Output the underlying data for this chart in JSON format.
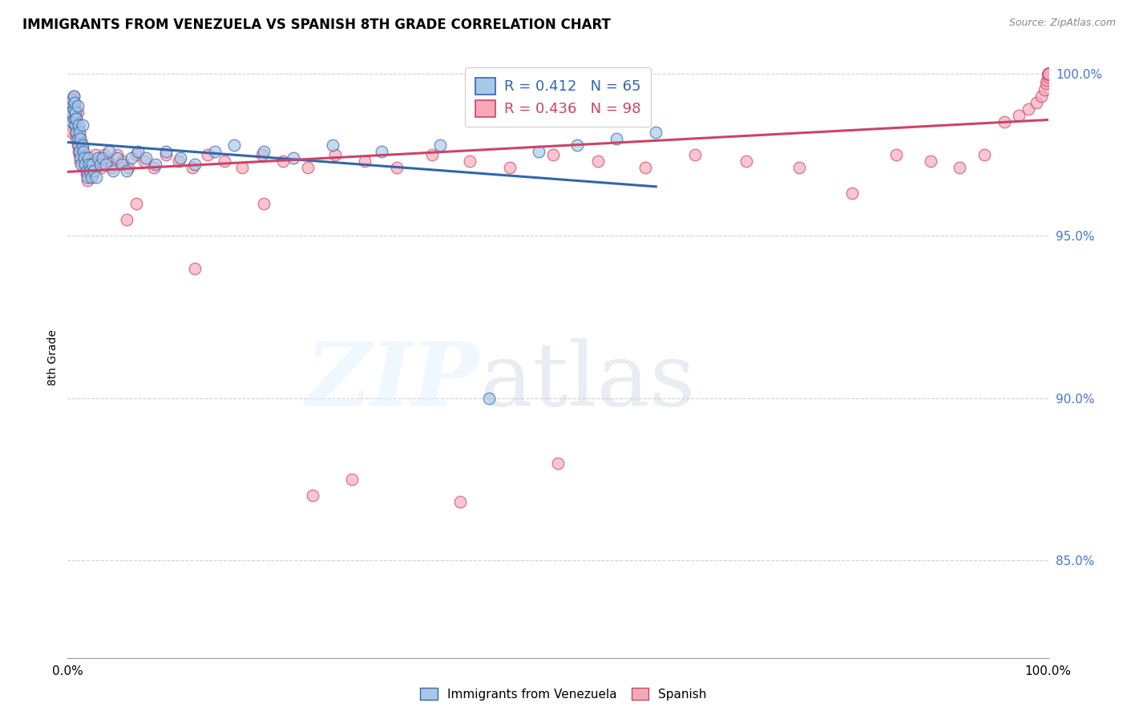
{
  "title": "IMMIGRANTS FROM VENEZUELA VS SPANISH 8TH GRADE CORRELATION CHART",
  "source": "Source: ZipAtlas.com",
  "ylabel": "8th Grade",
  "xlim": [
    0.0,
    1.0
  ],
  "ylim": [
    0.82,
    1.005
  ],
  "yticks": [
    0.85,
    0.9,
    0.95,
    1.0
  ],
  "ytick_labels": [
    "85.0%",
    "90.0%",
    "95.0%",
    "100.0%"
  ],
  "xtick_labels": [
    "0.0%",
    "",
    "",
    "",
    "",
    "100.0%"
  ],
  "blue_R": 0.412,
  "blue_N": 65,
  "pink_R": 0.436,
  "pink_N": 98,
  "blue_color": "#a8c8e8",
  "pink_color": "#f4a8b8",
  "blue_line_color": "#3366aa",
  "pink_line_color": "#cc4466",
  "legend_blue_label": "Immigrants from Venezuela",
  "legend_pink_label": "Spanish",
  "blue_x": [
    0.002,
    0.003,
    0.004,
    0.004,
    0.005,
    0.005,
    0.006,
    0.006,
    0.007,
    0.007,
    0.008,
    0.008,
    0.009,
    0.009,
    0.01,
    0.01,
    0.011,
    0.011,
    0.012,
    0.012,
    0.013,
    0.013,
    0.014,
    0.015,
    0.015,
    0.016,
    0.017,
    0.018,
    0.019,
    0.02,
    0.021,
    0.022,
    0.023,
    0.024,
    0.025,
    0.027,
    0.029,
    0.031,
    0.033,
    0.036,
    0.039,
    0.042,
    0.046,
    0.05,
    0.055,
    0.06,
    0.065,
    0.072,
    0.08,
    0.09,
    0.1,
    0.115,
    0.13,
    0.15,
    0.17,
    0.2,
    0.23,
    0.27,
    0.32,
    0.38,
    0.43,
    0.48,
    0.52,
    0.56,
    0.6
  ],
  "blue_y": [
    0.987,
    0.99,
    0.991,
    0.988,
    0.985,
    0.992,
    0.989,
    0.993,
    0.986,
    0.991,
    0.984,
    0.988,
    0.982,
    0.986,
    0.98,
    0.99,
    0.978,
    0.984,
    0.976,
    0.982,
    0.974,
    0.98,
    0.972,
    0.978,
    0.984,
    0.976,
    0.974,
    0.972,
    0.97,
    0.968,
    0.974,
    0.972,
    0.97,
    0.968,
    0.972,
    0.97,
    0.968,
    0.974,
    0.972,
    0.974,
    0.972,
    0.976,
    0.97,
    0.974,
    0.972,
    0.97,
    0.974,
    0.976,
    0.974,
    0.972,
    0.976,
    0.974,
    0.972,
    0.976,
    0.978,
    0.976,
    0.974,
    0.978,
    0.976,
    0.978,
    0.9,
    0.976,
    0.978,
    0.98,
    0.982
  ],
  "pink_x": [
    0.002,
    0.003,
    0.004,
    0.004,
    0.005,
    0.005,
    0.006,
    0.006,
    0.007,
    0.007,
    0.008,
    0.008,
    0.009,
    0.009,
    0.01,
    0.01,
    0.011,
    0.011,
    0.012,
    0.012,
    0.013,
    0.014,
    0.015,
    0.016,
    0.017,
    0.018,
    0.019,
    0.02,
    0.022,
    0.024,
    0.026,
    0.028,
    0.031,
    0.034,
    0.037,
    0.041,
    0.045,
    0.05,
    0.056,
    0.062,
    0.07,
    0.078,
    0.088,
    0.1,
    0.113,
    0.127,
    0.143,
    0.16,
    0.178,
    0.198,
    0.22,
    0.245,
    0.273,
    0.303,
    0.336,
    0.372,
    0.41,
    0.451,
    0.495,
    0.541,
    0.589,
    0.64,
    0.692,
    0.746,
    0.8,
    0.845,
    0.88,
    0.91,
    0.935,
    0.955,
    0.97,
    0.98,
    0.988,
    0.993,
    0.996,
    0.998,
    0.999,
    1.0,
    1.0,
    1.0,
    1.0,
    1.0,
    1.0,
    1.0,
    1.0,
    1.0,
    1.0,
    1.0,
    1.0,
    1.0,
    0.07,
    0.13,
    0.2,
    0.29,
    0.4,
    0.5,
    0.25,
    0.06
  ],
  "pink_y": [
    0.986,
    0.99,
    0.988,
    0.985,
    0.982,
    0.991,
    0.988,
    0.993,
    0.985,
    0.99,
    0.982,
    0.987,
    0.98,
    0.985,
    0.978,
    0.988,
    0.976,
    0.983,
    0.975,
    0.981,
    0.973,
    0.979,
    0.977,
    0.975,
    0.973,
    0.971,
    0.969,
    0.967,
    0.973,
    0.971,
    0.969,
    0.975,
    0.973,
    0.971,
    0.975,
    0.973,
    0.971,
    0.975,
    0.973,
    0.971,
    0.975,
    0.973,
    0.971,
    0.975,
    0.973,
    0.971,
    0.975,
    0.973,
    0.971,
    0.975,
    0.973,
    0.971,
    0.975,
    0.973,
    0.971,
    0.975,
    0.973,
    0.971,
    0.975,
    0.973,
    0.971,
    0.975,
    0.973,
    0.971,
    0.963,
    0.975,
    0.973,
    0.971,
    0.975,
    0.985,
    0.987,
    0.989,
    0.991,
    0.993,
    0.995,
    0.997,
    0.998,
    0.999,
    1.0,
    1.0,
    1.0,
    1.0,
    1.0,
    1.0,
    1.0,
    1.0,
    1.0,
    1.0,
    1.0,
    1.0,
    0.96,
    0.94,
    0.96,
    0.875,
    0.868,
    0.88,
    0.87,
    0.955
  ]
}
